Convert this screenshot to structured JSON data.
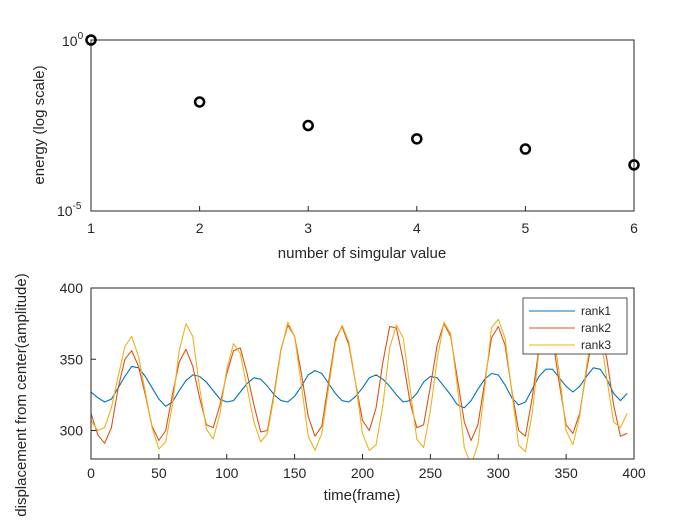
{
  "chart_data": [
    {
      "type": "scatter",
      "xlabel": "number of simgular value",
      "ylabel": "energy (log scale)",
      "yscale": "log",
      "xlim": [
        1,
        6
      ],
      "ylim": [
        1e-05,
        1
      ],
      "xticks": [
        "1",
        "2",
        "3",
        "4",
        "5",
        "6"
      ],
      "yticks": [
        {
          "base": "10",
          "exp": "0"
        },
        {
          "base": "10",
          "exp": "-5"
        }
      ],
      "grid": false,
      "marker": "circle-open",
      "marker_color": "#000000",
      "series": [
        {
          "x": [
            1,
            2,
            3,
            4,
            5,
            6
          ],
          "values": [
            1.0,
            0.0154,
            0.00316,
            0.00129,
            0.000649,
            0.000223
          ]
        }
      ]
    },
    {
      "type": "line",
      "xlabel": "time(frame)",
      "ylabel": "displacement from center(amplitude)",
      "xlim": [
        0,
        400
      ],
      "ylim": [
        280,
        400
      ],
      "xticks": [
        "0",
        "50",
        "100",
        "150",
        "200",
        "250",
        "300",
        "350",
        "400"
      ],
      "yticks": [
        "300",
        "350",
        "400"
      ],
      "grid": false,
      "legend_position": "top-right",
      "series": [
        {
          "name": "rank1",
          "color": "#0072BD",
          "x": [
            0,
            5,
            10,
            15,
            20,
            25,
            30,
            35,
            40,
            45,
            50,
            55,
            60,
            65,
            70,
            75,
            80,
            85,
            90,
            95,
            100,
            105,
            110,
            115,
            120,
            125,
            130,
            135,
            140,
            145,
            150,
            155,
            160,
            165,
            170,
            175,
            180,
            185,
            190,
            195,
            200,
            205,
            210,
            215,
            220,
            225,
            230,
            235,
            240,
            245,
            250,
            255,
            260,
            265,
            270,
            275,
            280,
            285,
            290,
            295,
            300,
            305,
            310,
            315,
            320,
            325,
            330,
            335,
            340,
            345,
            350,
            355,
            360,
            365,
            370,
            375,
            380,
            385,
            390,
            395
          ],
          "values": [
            327,
            323,
            320,
            322,
            330,
            338,
            345,
            344,
            338,
            330,
            322,
            317,
            320,
            328,
            335,
            339,
            338,
            334,
            328,
            322,
            320,
            321,
            327,
            333,
            337,
            336,
            331,
            325,
            321,
            320,
            324,
            331,
            339,
            342,
            340,
            333,
            326,
            321,
            320,
            324,
            330,
            337,
            339,
            336,
            331,
            325,
            320,
            321,
            326,
            334,
            338,
            337,
            331,
            325,
            318,
            316,
            321,
            329,
            336,
            340,
            339,
            332,
            323,
            318,
            320,
            329,
            338,
            343,
            343,
            337,
            331,
            327,
            331,
            338,
            344,
            343,
            336,
            326,
            321,
            326
          ]
        },
        {
          "name": "rank2",
          "color": "#D95319",
          "x": [
            0,
            5,
            10,
            15,
            20,
            25,
            30,
            35,
            40,
            45,
            50,
            55,
            60,
            65,
            70,
            75,
            80,
            85,
            90,
            95,
            100,
            105,
            110,
            115,
            120,
            125,
            130,
            135,
            140,
            145,
            150,
            155,
            160,
            165,
            170,
            175,
            180,
            185,
            190,
            195,
            200,
            205,
            210,
            215,
            220,
            225,
            230,
            235,
            240,
            245,
            250,
            255,
            260,
            265,
            270,
            275,
            280,
            285,
            290,
            295,
            300,
            305,
            310,
            315,
            320,
            325,
            330,
            335,
            340,
            345,
            350,
            355,
            360,
            365,
            370,
            375,
            380,
            385,
            390,
            395
          ],
          "values": [
            312,
            297,
            291,
            302,
            330,
            350,
            356,
            345,
            325,
            303,
            293,
            300,
            325,
            348,
            357,
            345,
            323,
            304,
            302,
            318,
            340,
            356,
            358,
            340,
            318,
            299,
            300,
            327,
            357,
            374,
            366,
            340,
            310,
            296,
            303,
            334,
            364,
            373,
            360,
            333,
            307,
            300,
            316,
            348,
            373,
            372,
            349,
            320,
            302,
            304,
            331,
            360,
            375,
            366,
            336,
            306,
            293,
            304,
            334,
            365,
            373,
            360,
            328,
            300,
            296,
            323,
            358,
            377,
            365,
            333,
            304,
            298,
            312,
            342,
            368,
            372,
            350,
            318,
            296,
            298
          ]
        },
        {
          "name": "rank3",
          "color": "#EDB120",
          "x": [
            0,
            5,
            10,
            15,
            20,
            25,
            30,
            35,
            40,
            45,
            50,
            55,
            60,
            65,
            70,
            75,
            80,
            85,
            90,
            95,
            100,
            105,
            110,
            115,
            120,
            125,
            130,
            135,
            140,
            145,
            150,
            155,
            160,
            165,
            170,
            175,
            180,
            185,
            190,
            195,
            200,
            205,
            210,
            215,
            220,
            225,
            230,
            235,
            240,
            245,
            250,
            255,
            260,
            265,
            270,
            275,
            280,
            285,
            290,
            295,
            300,
            305,
            310,
            315,
            320,
            325,
            330,
            335,
            340,
            345,
            350,
            355,
            360,
            365,
            370,
            375,
            380,
            385,
            390,
            395
          ],
          "values": [
            307,
            300,
            302,
            316,
            338,
            359,
            366,
            352,
            327,
            302,
            287,
            292,
            318,
            356,
            375,
            366,
            330,
            301,
            294,
            312,
            343,
            361,
            354,
            330,
            306,
            292,
            298,
            325,
            356,
            376,
            366,
            332,
            296,
            286,
            298,
            330,
            362,
            374,
            362,
            333,
            298,
            286,
            290,
            318,
            358,
            374,
            365,
            330,
            294,
            288,
            314,
            350,
            376,
            368,
            330,
            288,
            276,
            290,
            330,
            372,
            378,
            365,
            327,
            290,
            285,
            312,
            356,
            379,
            372,
            340,
            300,
            290,
            310,
            345,
            373,
            368,
            336,
            306,
            302,
            312
          ]
        }
      ]
    }
  ]
}
